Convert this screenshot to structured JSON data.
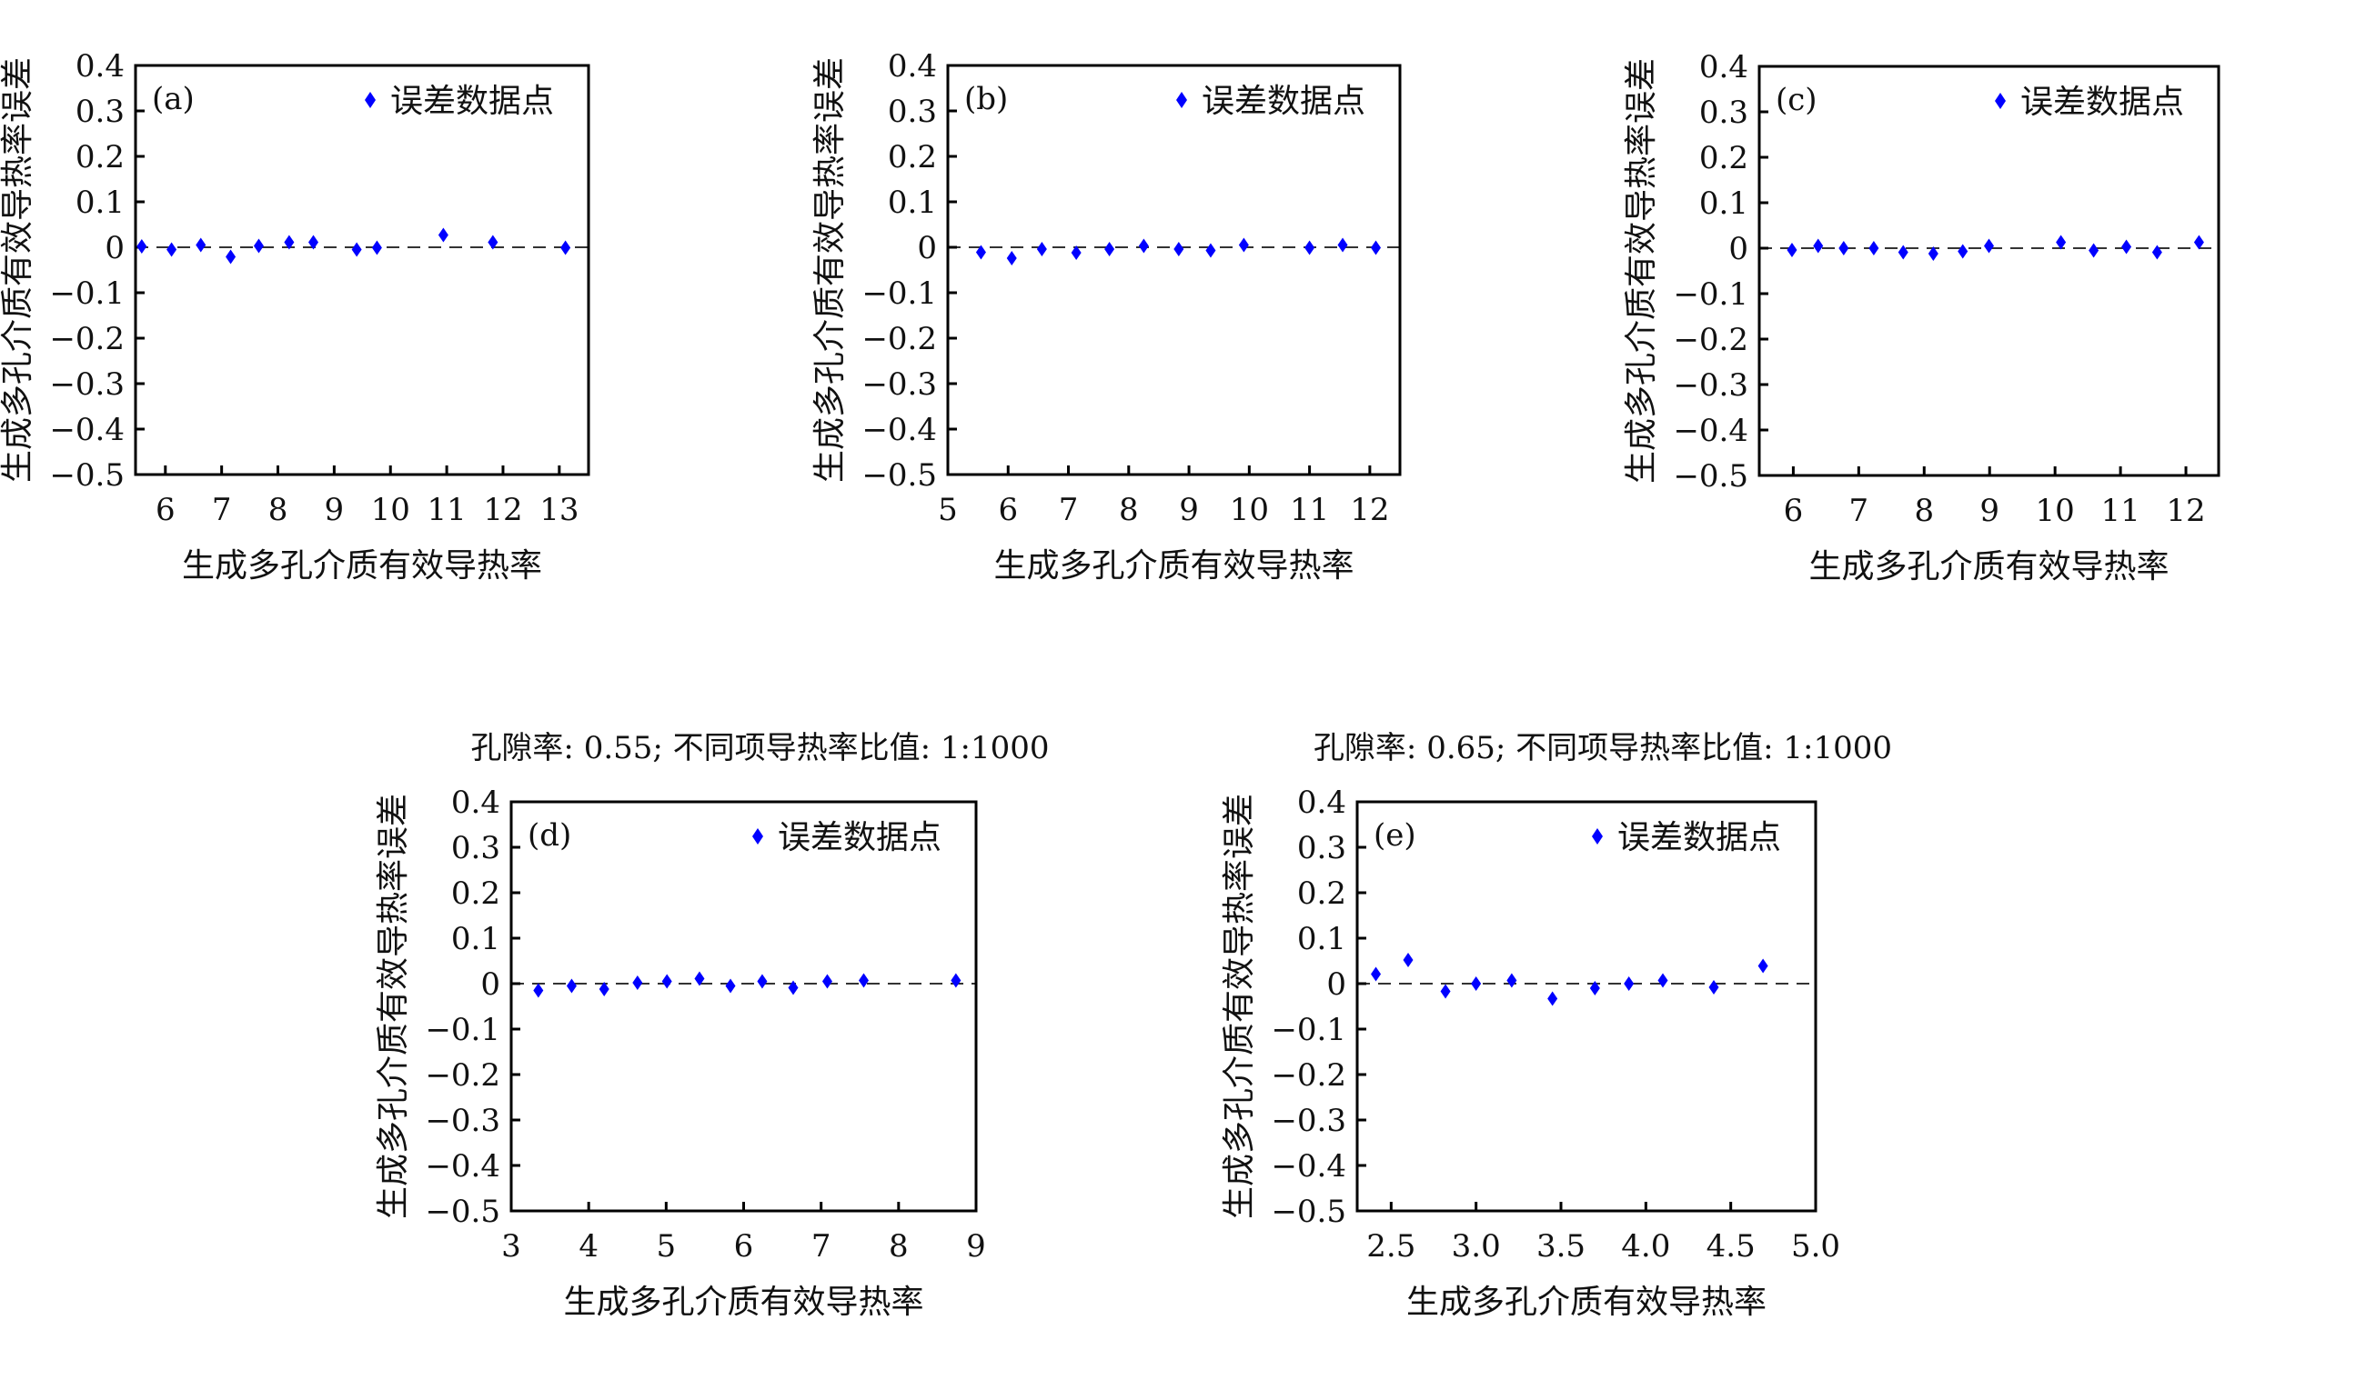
{
  "marker_color": "#0000ff",
  "chart_data": [
    {
      "type": "scatter",
      "panel": "(a)",
      "title": "",
      "xlabel": "生成多孔介质有效导热率",
      "ylabel": "生成多孔介质有效导热率误差",
      "legend": "误差数据点",
      "legend_position": "top-right",
      "xlim": [
        5.47,
        13.52
      ],
      "ylim": [
        -0.5,
        0.4
      ],
      "xticks": [
        6,
        7,
        8,
        9,
        10,
        11,
        12,
        13
      ],
      "xtick_labels": [
        "6",
        "7",
        "8",
        "9",
        "10",
        "11",
        "12",
        "13"
      ],
      "yticks": [
        0.4,
        0.3,
        0.2,
        0.1,
        0,
        -0.1,
        -0.2,
        -0.3,
        -0.4,
        -0.5
      ],
      "ytick_labels": [
        "0.4",
        "0.3",
        "0.2",
        "0.1",
        "0",
        "−0.1",
        "−0.2",
        "−0.3",
        "−0.4",
        "−0.5"
      ],
      "reference_line": 0,
      "x": [
        5.58,
        6.11,
        6.63,
        7.16,
        7.66,
        8.2,
        8.63,
        9.4,
        9.76,
        10.94,
        11.82,
        13.11
      ],
      "y": [
        0.002,
        -0.005,
        0.005,
        -0.021,
        0.003,
        0.011,
        0.011,
        -0.005,
        -0.001,
        0.027,
        0.011,
        -0.001
      ]
    },
    {
      "type": "scatter",
      "panel": "(b)",
      "title": "",
      "xlabel": "生成多孔介质有效导热率",
      "ylabel": "生成多孔介质有效导热率误差",
      "legend": "误差数据点",
      "legend_position": "top-right",
      "xlim": [
        5,
        12.5
      ],
      "ylim": [
        -0.5,
        0.4
      ],
      "xticks": [
        5,
        6,
        7,
        8,
        9,
        10,
        11,
        12
      ],
      "xtick_labels": [
        "5",
        "6",
        "7",
        "8",
        "9",
        "10",
        "11",
        "12"
      ],
      "yticks": [
        0.4,
        0.3,
        0.2,
        0.1,
        0,
        -0.1,
        -0.2,
        -0.3,
        -0.4,
        -0.5
      ],
      "ytick_labels": [
        "0.4",
        "0.3",
        "0.2",
        "0.1",
        "0",
        "−0.1",
        "−0.2",
        "−0.3",
        "−0.4",
        "−0.5"
      ],
      "reference_line": 0,
      "x": [
        5.55,
        6.06,
        6.56,
        7.13,
        7.68,
        8.25,
        8.83,
        9.36,
        9.91,
        11.0,
        11.55,
        12.1
      ],
      "y": [
        -0.011,
        -0.024,
        -0.004,
        -0.012,
        -0.004,
        0.003,
        -0.004,
        -0.007,
        0.005,
        -0.001,
        0.005,
        -0.001
      ]
    },
    {
      "type": "scatter",
      "panel": "(c)",
      "title": "",
      "xlabel": "生成多孔介质有效导热率",
      "ylabel": "生成多孔介质有效导热率误差",
      "legend": "误差数据点",
      "legend_position": "top-right",
      "xlim": [
        5.48,
        12.5
      ],
      "ylim": [
        -0.5,
        0.4
      ],
      "xticks": [
        6,
        7,
        8,
        9,
        10,
        11,
        12
      ],
      "xtick_labels": [
        "6",
        "7",
        "8",
        "9",
        "10",
        "11",
        "12"
      ],
      "yticks": [
        0.4,
        0.3,
        0.2,
        0.1,
        0,
        -0.1,
        -0.2,
        -0.3,
        -0.4,
        -0.5
      ],
      "ytick_labels": [
        "0.4",
        "0.3",
        "0.2",
        "0.1",
        "0",
        "−0.1",
        "−0.2",
        "−0.3",
        "−0.4",
        "−0.5"
      ],
      "reference_line": 0,
      "x": [
        5.98,
        6.38,
        6.77,
        7.23,
        7.68,
        8.14,
        8.59,
        8.99,
        10.09,
        10.59,
        11.09,
        11.56,
        12.2
      ],
      "y": [
        -0.004,
        0.005,
        0,
        0,
        -0.009,
        -0.012,
        -0.007,
        0.005,
        0.013,
        -0.005,
        0.003,
        -0.009,
        0.013
      ]
    },
    {
      "type": "scatter",
      "panel": "(d)",
      "title": "孔隙率: 0.55; 不同项导热率比值: 1:1000",
      "xlabel": "生成多孔介质有效导热率",
      "ylabel": "生成多孔介质有效导热率误差",
      "legend": "误差数据点",
      "legend_position": "top-right",
      "xlim": [
        3,
        9
      ],
      "ylim": [
        -0.5,
        0.4
      ],
      "xticks": [
        3,
        4,
        5,
        6,
        7,
        8,
        9
      ],
      "xtick_labels": [
        "3",
        "4",
        "5",
        "6",
        "7",
        "8",
        "9"
      ],
      "yticks": [
        0.4,
        0.3,
        0.2,
        0.1,
        0,
        -0.1,
        -0.2,
        -0.3,
        -0.4,
        -0.5
      ],
      "ytick_labels": [
        "0.4",
        "0.3",
        "0.2",
        "0.1",
        "0",
        "−0.1",
        "−0.2",
        "−0.3",
        "−0.4",
        "−0.5"
      ],
      "reference_line": 0,
      "x": [
        3.35,
        3.78,
        4.2,
        4.63,
        5.01,
        5.43,
        5.83,
        6.24,
        6.64,
        7.08,
        7.55,
        8.74
      ],
      "y": [
        -0.015,
        -0.005,
        -0.012,
        0.002,
        0.005,
        0.011,
        -0.005,
        0.005,
        -0.009,
        0.005,
        0.007,
        0.007
      ]
    },
    {
      "type": "scatter",
      "panel": "(e)",
      "title": "孔隙率: 0.65; 不同项导热率比值: 1:1000",
      "xlabel": "生成多孔介质有效导热率",
      "ylabel": "生成多孔介质有效导热率误差",
      "legend": "误差数据点",
      "legend_position": "top-right",
      "xlim": [
        2.3,
        5.0
      ],
      "ylim": [
        -0.5,
        0.4
      ],
      "xticks": [
        2.5,
        3.0,
        3.5,
        4.0,
        4.5,
        5.0
      ],
      "xtick_labels": [
        "2.5",
        "3.0",
        "3.5",
        "4.0",
        "4.5",
        "5.0"
      ],
      "yticks": [
        0.4,
        0.3,
        0.2,
        0.1,
        0,
        -0.1,
        -0.2,
        -0.3,
        -0.4,
        -0.5
      ],
      "ytick_labels": [
        "0.4",
        "0.3",
        "0.2",
        "0.1",
        "0",
        "−0.1",
        "−0.2",
        "−0.3",
        "−0.4",
        "−0.5"
      ],
      "reference_line": 0,
      "x": [
        2.41,
        2.6,
        2.82,
        3.0,
        3.21,
        3.45,
        3.7,
        3.9,
        4.1,
        4.4,
        4.69
      ],
      "y": [
        0.021,
        0.052,
        -0.017,
        0,
        0.007,
        -0.033,
        -0.01,
        0,
        0.007,
        -0.008,
        0.039
      ]
    }
  ]
}
